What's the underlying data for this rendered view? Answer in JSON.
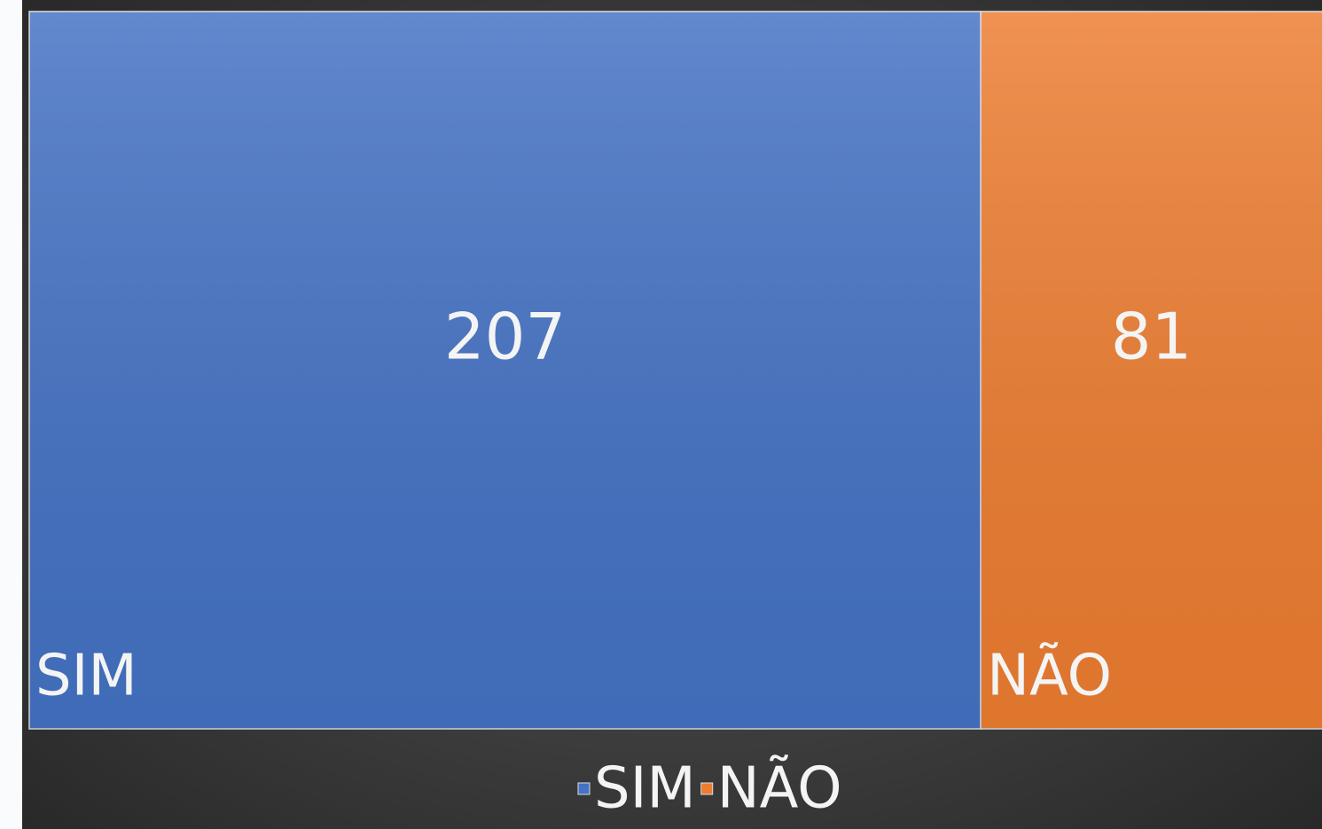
{
  "chart_data": {
    "type": "treemap",
    "categories": [
      "SIM",
      "NÃO"
    ],
    "values": [
      207,
      81
    ],
    "colors": [
      "#4472c4",
      "#ed7d31"
    ],
    "legend": "bottom"
  }
}
